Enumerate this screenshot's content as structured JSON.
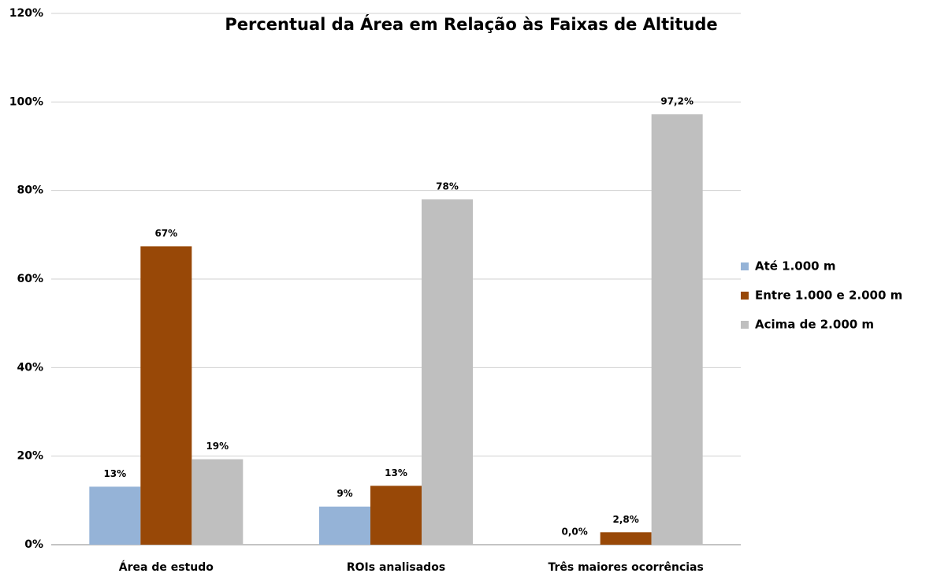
{
  "chart_data": {
    "type": "bar",
    "title": "Percentual da Área em Relação às Faixas de Altitude",
    "categories": [
      "Área de estudo",
      "ROIs analisados",
      "Três maiores ocorrências"
    ],
    "series": [
      {
        "name": "Até 1.000 m",
        "color": "#95b3d7",
        "values": [
          13.1,
          8.6,
          0
        ],
        "value_labels": [
          "13%",
          "9%",
          "0,0%"
        ]
      },
      {
        "name": "Entre 1.000 e 2.000 m",
        "color": "#984807",
        "values": [
          67.4,
          13.3,
          2.8
        ],
        "value_labels": [
          "67%",
          "13%",
          "2,8%"
        ]
      },
      {
        "name": "Acima de 2.000 m",
        "color": "#bfbfbf",
        "values": [
          19.3,
          78,
          97.2
        ],
        "value_labels": [
          "19%",
          "78%",
          "97,2%"
        ]
      }
    ],
    "ylim": [
      0,
      120
    ],
    "yticks": [
      {
        "value": 0,
        "label": "0%"
      },
      {
        "value": 20,
        "label": "20%"
      },
      {
        "value": 40,
        "label": "40%"
      },
      {
        "value": 60,
        "label": "60%"
      },
      {
        "value": 80,
        "label": "80%"
      },
      {
        "value": 100,
        "label": "100%"
      },
      {
        "value": 120,
        "label": "120%"
      }
    ],
    "grid": true,
    "legend": "right"
  }
}
